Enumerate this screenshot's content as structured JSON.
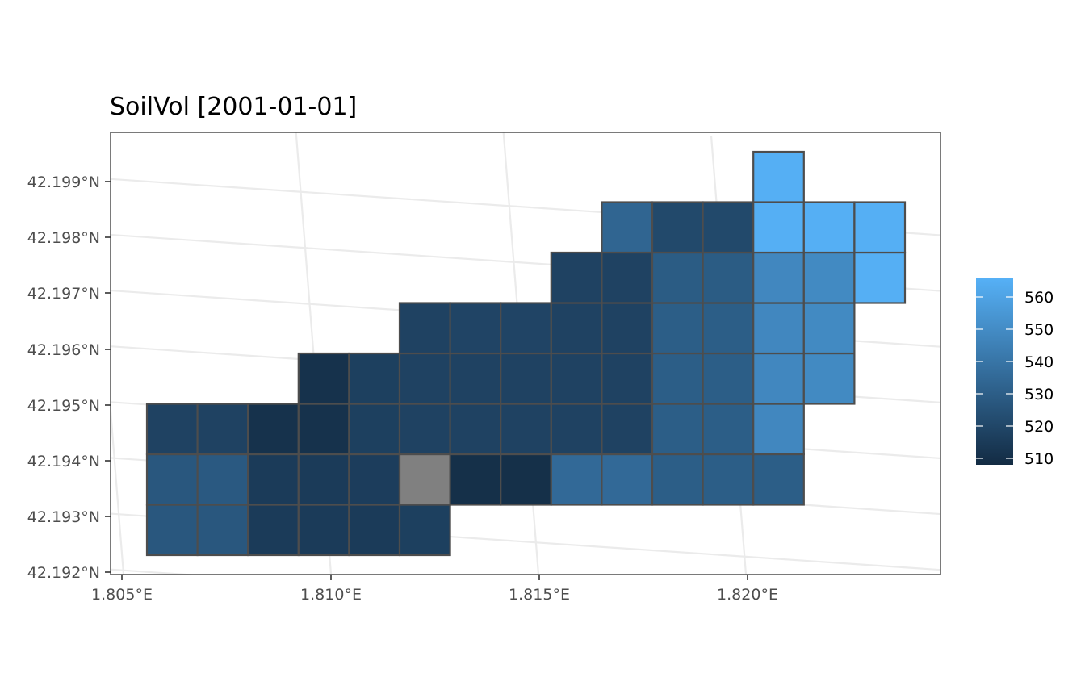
{
  "chart_data": {
    "type": "heatmap",
    "title": "SoilVol [2001-01-01]",
    "xlabel": "",
    "ylabel": "",
    "x_ticks": [
      {
        "value": 1.805,
        "label": "1.805°E"
      },
      {
        "value": 1.81,
        "label": "1.810°E"
      },
      {
        "value": 1.815,
        "label": "1.815°E"
      },
      {
        "value": 1.82,
        "label": "1.820°E"
      }
    ],
    "y_ticks": [
      {
        "value": 42.192,
        "label": "42.192°N"
      },
      {
        "value": 42.193,
        "label": "42.193°N"
      },
      {
        "value": 42.194,
        "label": "42.194°N"
      },
      {
        "value": 42.195,
        "label": "42.195°N"
      },
      {
        "value": 42.196,
        "label": "42.196°N"
      },
      {
        "value": 42.197,
        "label": "42.197°N"
      },
      {
        "value": 42.198,
        "label": "42.198°N"
      },
      {
        "value": 42.199,
        "label": "42.199°N"
      }
    ],
    "xlim": [
      1.8046,
      1.8246
    ],
    "ylim": [
      42.192,
      42.1999
    ],
    "grid": true,
    "legend_position": "right",
    "legend": {
      "min": 508,
      "max": 566,
      "ticks": [
        510,
        520,
        530,
        540,
        550,
        560
      ],
      "low_color": "#132b43",
      "high_color": "#56b1f7"
    },
    "na_color": "#808080",
    "grid_origin": [
      1.8056,
      42.1923
    ],
    "cell_size": [
      0.001211,
      0.0009
    ],
    "rows": [
      [
        527,
        527,
        515,
        515,
        515,
        517,
        null,
        null,
        null,
        null,
        null,
        null,
        null,
        null,
        null
      ],
      [
        527,
        528,
        515,
        515,
        516,
        "NA",
        510,
        510,
        535,
        535,
        530,
        530,
        530,
        null,
        null
      ],
      [
        518,
        518,
        511,
        511,
        517,
        518,
        518,
        518,
        518,
        518,
        530,
        530,
        548,
        null,
        null
      ],
      [
        null,
        null,
        null,
        511,
        517,
        518,
        518,
        518,
        518,
        518,
        530,
        530,
        548,
        549,
        null
      ],
      [
        null,
        null,
        null,
        null,
        null,
        518,
        519,
        519,
        518,
        518,
        530,
        530,
        548,
        549,
        null
      ],
      [
        null,
        null,
        null,
        null,
        null,
        null,
        null,
        null,
        518,
        518,
        529,
        529,
        548,
        549,
        565
      ],
      [
        null,
        null,
        null,
        null,
        null,
        null,
        null,
        null,
        null,
        533,
        521,
        521,
        565,
        565,
        565
      ],
      [
        null,
        null,
        null,
        null,
        null,
        null,
        null,
        null,
        null,
        null,
        null,
        null,
        565,
        null,
        null
      ]
    ]
  }
}
